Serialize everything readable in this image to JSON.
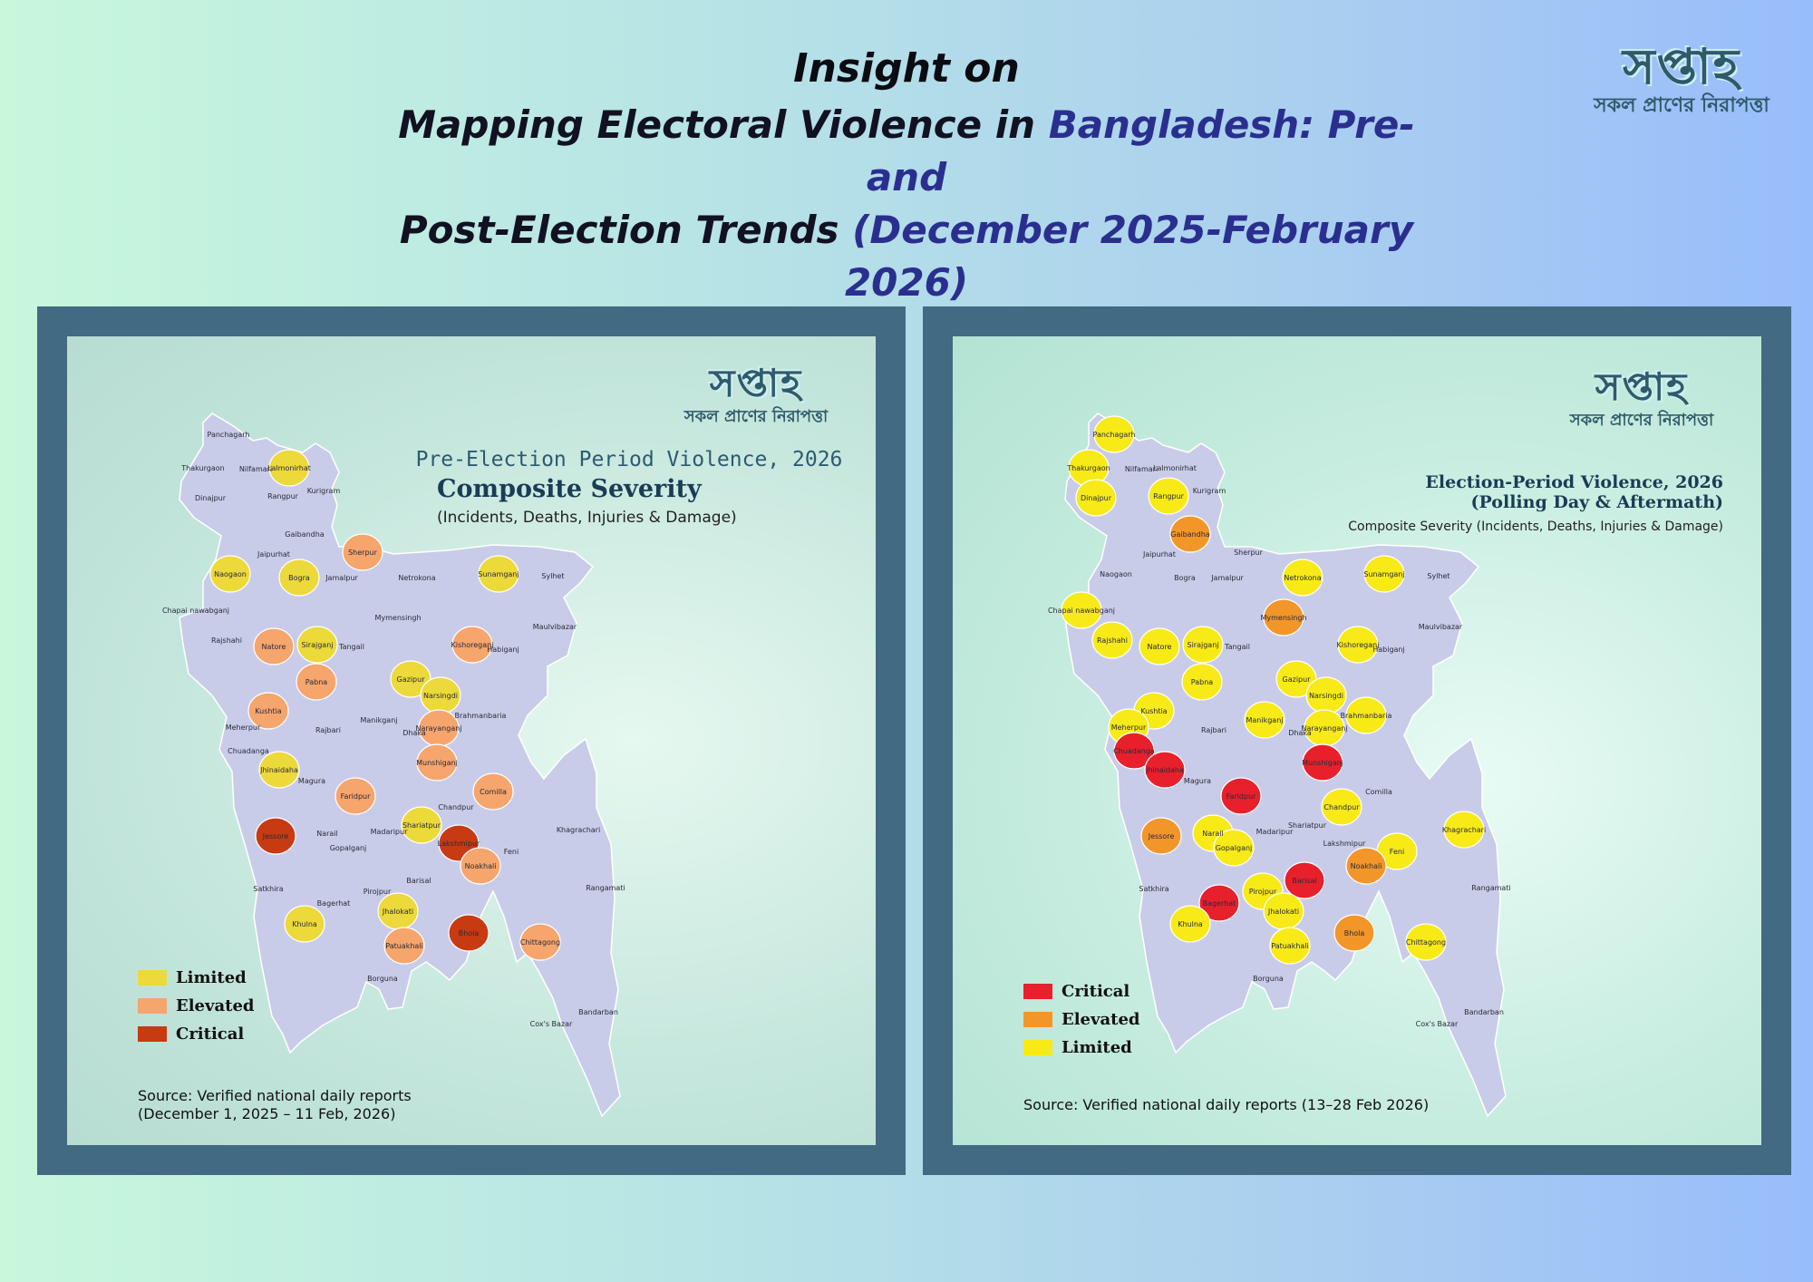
{
  "header": {
    "line1": "Insight on",
    "line2_black": "Mapping Electoral Violence in ",
    "line2_blue": "Bangladesh: Pre- and",
    "line3_black": "Post-Election Trends ",
    "line3_blue": "(December 2025-February",
    "line4": "2026)"
  },
  "logo": {
    "mark": "সপ্তাহ",
    "tagline": "সকল প্রাণের নিরাপত্তা"
  },
  "colors": {
    "base": "#c9cce8",
    "left_limited": "#ecd93a",
    "left_elevated": "#f6a56c",
    "left_critical": "#c73a12",
    "right_limited": "#f7ea17",
    "right_elevated": "#f2962a",
    "right_critical": "#e8202c"
  },
  "left_map": {
    "period_title": "Pre-Election Period Violence, 2026",
    "main_title": "Composite Severity",
    "subtitle": "(Incidents, Deaths, Injuries & Damage)",
    "legend": [
      "Limited",
      "Elevated",
      "Critical"
    ],
    "source_line1": "Source: Verified national daily reports",
    "source_line2": "(December 1, 2025 – 11 Feb, 2026)",
    "districts": {
      "limited": [
        "Lalmonirhat",
        "Naogaon",
        "Bogra",
        "Sirajganj",
        "Sunamganj",
        "Gazipur",
        "Narsingdi",
        "Jhinaidaha",
        "Khulna",
        "Shariatpur",
        "Jhalokati"
      ],
      "elevated": [
        "Sherpur",
        "Natore",
        "Pabna",
        "Kushtia",
        "Kishoreganj",
        "Narayanganj",
        "Munshiganj",
        "Faridpur",
        "Comilla",
        "Noakhali",
        "Chittagong",
        "Patuakhali"
      ],
      "critical": [
        "Jessore",
        "Lakshmipur",
        "Bhola"
      ]
    }
  },
  "right_map": {
    "title_line1": "Election-Period Violence, 2026",
    "title_line2": "(Polling Day & Aftermath)",
    "subtitle": "Composite Severity (Incidents, Deaths, Injuries & Damage)",
    "legend": [
      "Critical",
      "Elevated",
      "Limited"
    ],
    "source": "Source: Verified national daily reports (13–28 Feb 2026)",
    "districts": {
      "critical": [
        "Chuadanga",
        "Jhinaidaha",
        "Faridpur",
        "Munshiganj",
        "Barisal",
        "Bagerhat"
      ],
      "elevated": [
        "Gaibandha",
        "Mymensingh",
        "Jessore",
        "Noakhali",
        "Bhola"
      ],
      "limited": [
        "Panchagarh",
        "Thakurgaon",
        "Dinajpur",
        "Rangpur",
        "Chapai nawabganj",
        "Rajshahi",
        "Natore",
        "Sirajganj",
        "Pabna",
        "Kushtia",
        "Meherpur",
        "Netrokona",
        "Sunamganj",
        "Kishoreganj",
        "Gazipur",
        "Narsingdi",
        "Manikganj",
        "Narayanganj",
        "Brahmanbaria",
        "Chandpur",
        "Narail",
        "Gopalganj",
        "Khulna",
        "Pirojpur",
        "Jhalokati",
        "Patuakhali",
        "Feni",
        "Khagrachari",
        "Chittagong"
      ]
    }
  },
  "district_labels": [
    "Panchagarh",
    "Thakurgaon",
    "Nilfamari",
    "Lalmonirhat",
    "Dinajpur",
    "Rangpur",
    "Kurigram",
    "Gaibandha",
    "Jaipurhat",
    "Sherpur",
    "Naogaon",
    "Bogra",
    "Jamalpur",
    "Netrokona",
    "Sunamganj",
    "Sylhet",
    "Chapai nawabganj",
    "Rajshahi",
    "Natore",
    "Sirajganj",
    "Mymensingh",
    "Tangail",
    "Kishoreganj",
    "Habiganj",
    "Maulvibazar",
    "Pabna",
    "Gazipur",
    "Narsingdi",
    "Kushtia",
    "Manikganj",
    "Brahmanbaria",
    "Meherpur",
    "Rajbari",
    "Dhaka",
    "Narayanganj",
    "Chuadanga",
    "Jhinaidaha",
    "Magura",
    "Faridpur",
    "Munshiganj",
    "Comilla",
    "Chandpur",
    "Jessore",
    "Narail",
    "Madaripur",
    "Shariatpur",
    "Khagrachari",
    "Gopalganj",
    "Lakshmipur",
    "Feni",
    "Noakhali",
    "Satkhira",
    "Pirojpur",
    "Barisal",
    "Rangamati",
    "Bagerhat",
    "Jhalokati",
    "Khulna",
    "Bhola",
    "Patuakhali",
    "Chittagong",
    "Borguna",
    "Bandarban",
    "Cox's Bazar"
  ]
}
